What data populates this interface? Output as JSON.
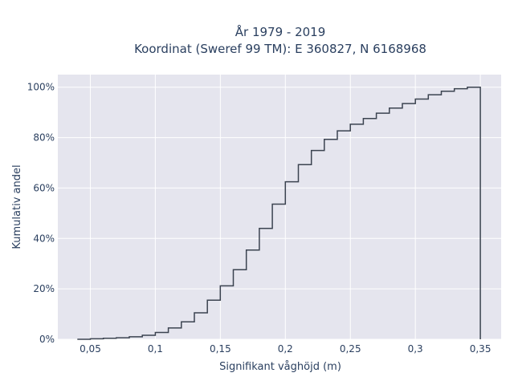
{
  "chart_data": {
    "type": "line",
    "subtype": "cumulative-step",
    "title": "År 1979 - 2019",
    "subtitle": "Koordinat (Sweref 99 TM): E 360827, N 6168968",
    "xlabel": "Signifikant våghöjd (m)",
    "ylabel": "Kumulativ andel",
    "xlim": [
      0.025,
      0.366
    ],
    "ylim": [
      0,
      1.05
    ],
    "x_ticks": [
      0.05,
      0.1,
      0.15,
      0.2,
      0.25,
      0.3,
      0.35
    ],
    "x_tick_labels": [
      "0,05",
      "0,1",
      "0,15",
      "0,2",
      "0,25",
      "0,3",
      "0,35"
    ],
    "y_ticks": [
      0,
      0.2,
      0.4,
      0.6,
      0.8,
      1.0
    ],
    "y_tick_labels": [
      "0%",
      "20%",
      "40%",
      "60%",
      "80%",
      "100%"
    ],
    "grid": true,
    "colors": {
      "line": "#3b4350",
      "plot_bg": "#e5e5ee",
      "grid": "#ffffff",
      "text": "#2a3f5f"
    },
    "bin_edges": [
      0.04,
      0.05,
      0.06,
      0.07,
      0.08,
      0.09,
      0.1,
      0.11,
      0.12,
      0.13,
      0.14,
      0.15,
      0.16,
      0.17,
      0.18,
      0.19,
      0.2,
      0.21,
      0.22,
      0.23,
      0.24,
      0.25,
      0.26,
      0.27,
      0.28,
      0.29,
      0.3,
      0.31,
      0.32,
      0.33,
      0.34,
      0.35
    ],
    "cumulative": [
      0.0,
      0.002,
      0.004,
      0.006,
      0.01,
      0.016,
      0.027,
      0.045,
      0.069,
      0.105,
      0.155,
      0.212,
      0.276,
      0.354,
      0.44,
      0.536,
      0.625,
      0.693,
      0.749,
      0.793,
      0.827,
      0.853,
      0.876,
      0.897,
      0.917,
      0.935,
      0.953,
      0.97,
      0.984,
      0.994,
      1.0
    ]
  }
}
